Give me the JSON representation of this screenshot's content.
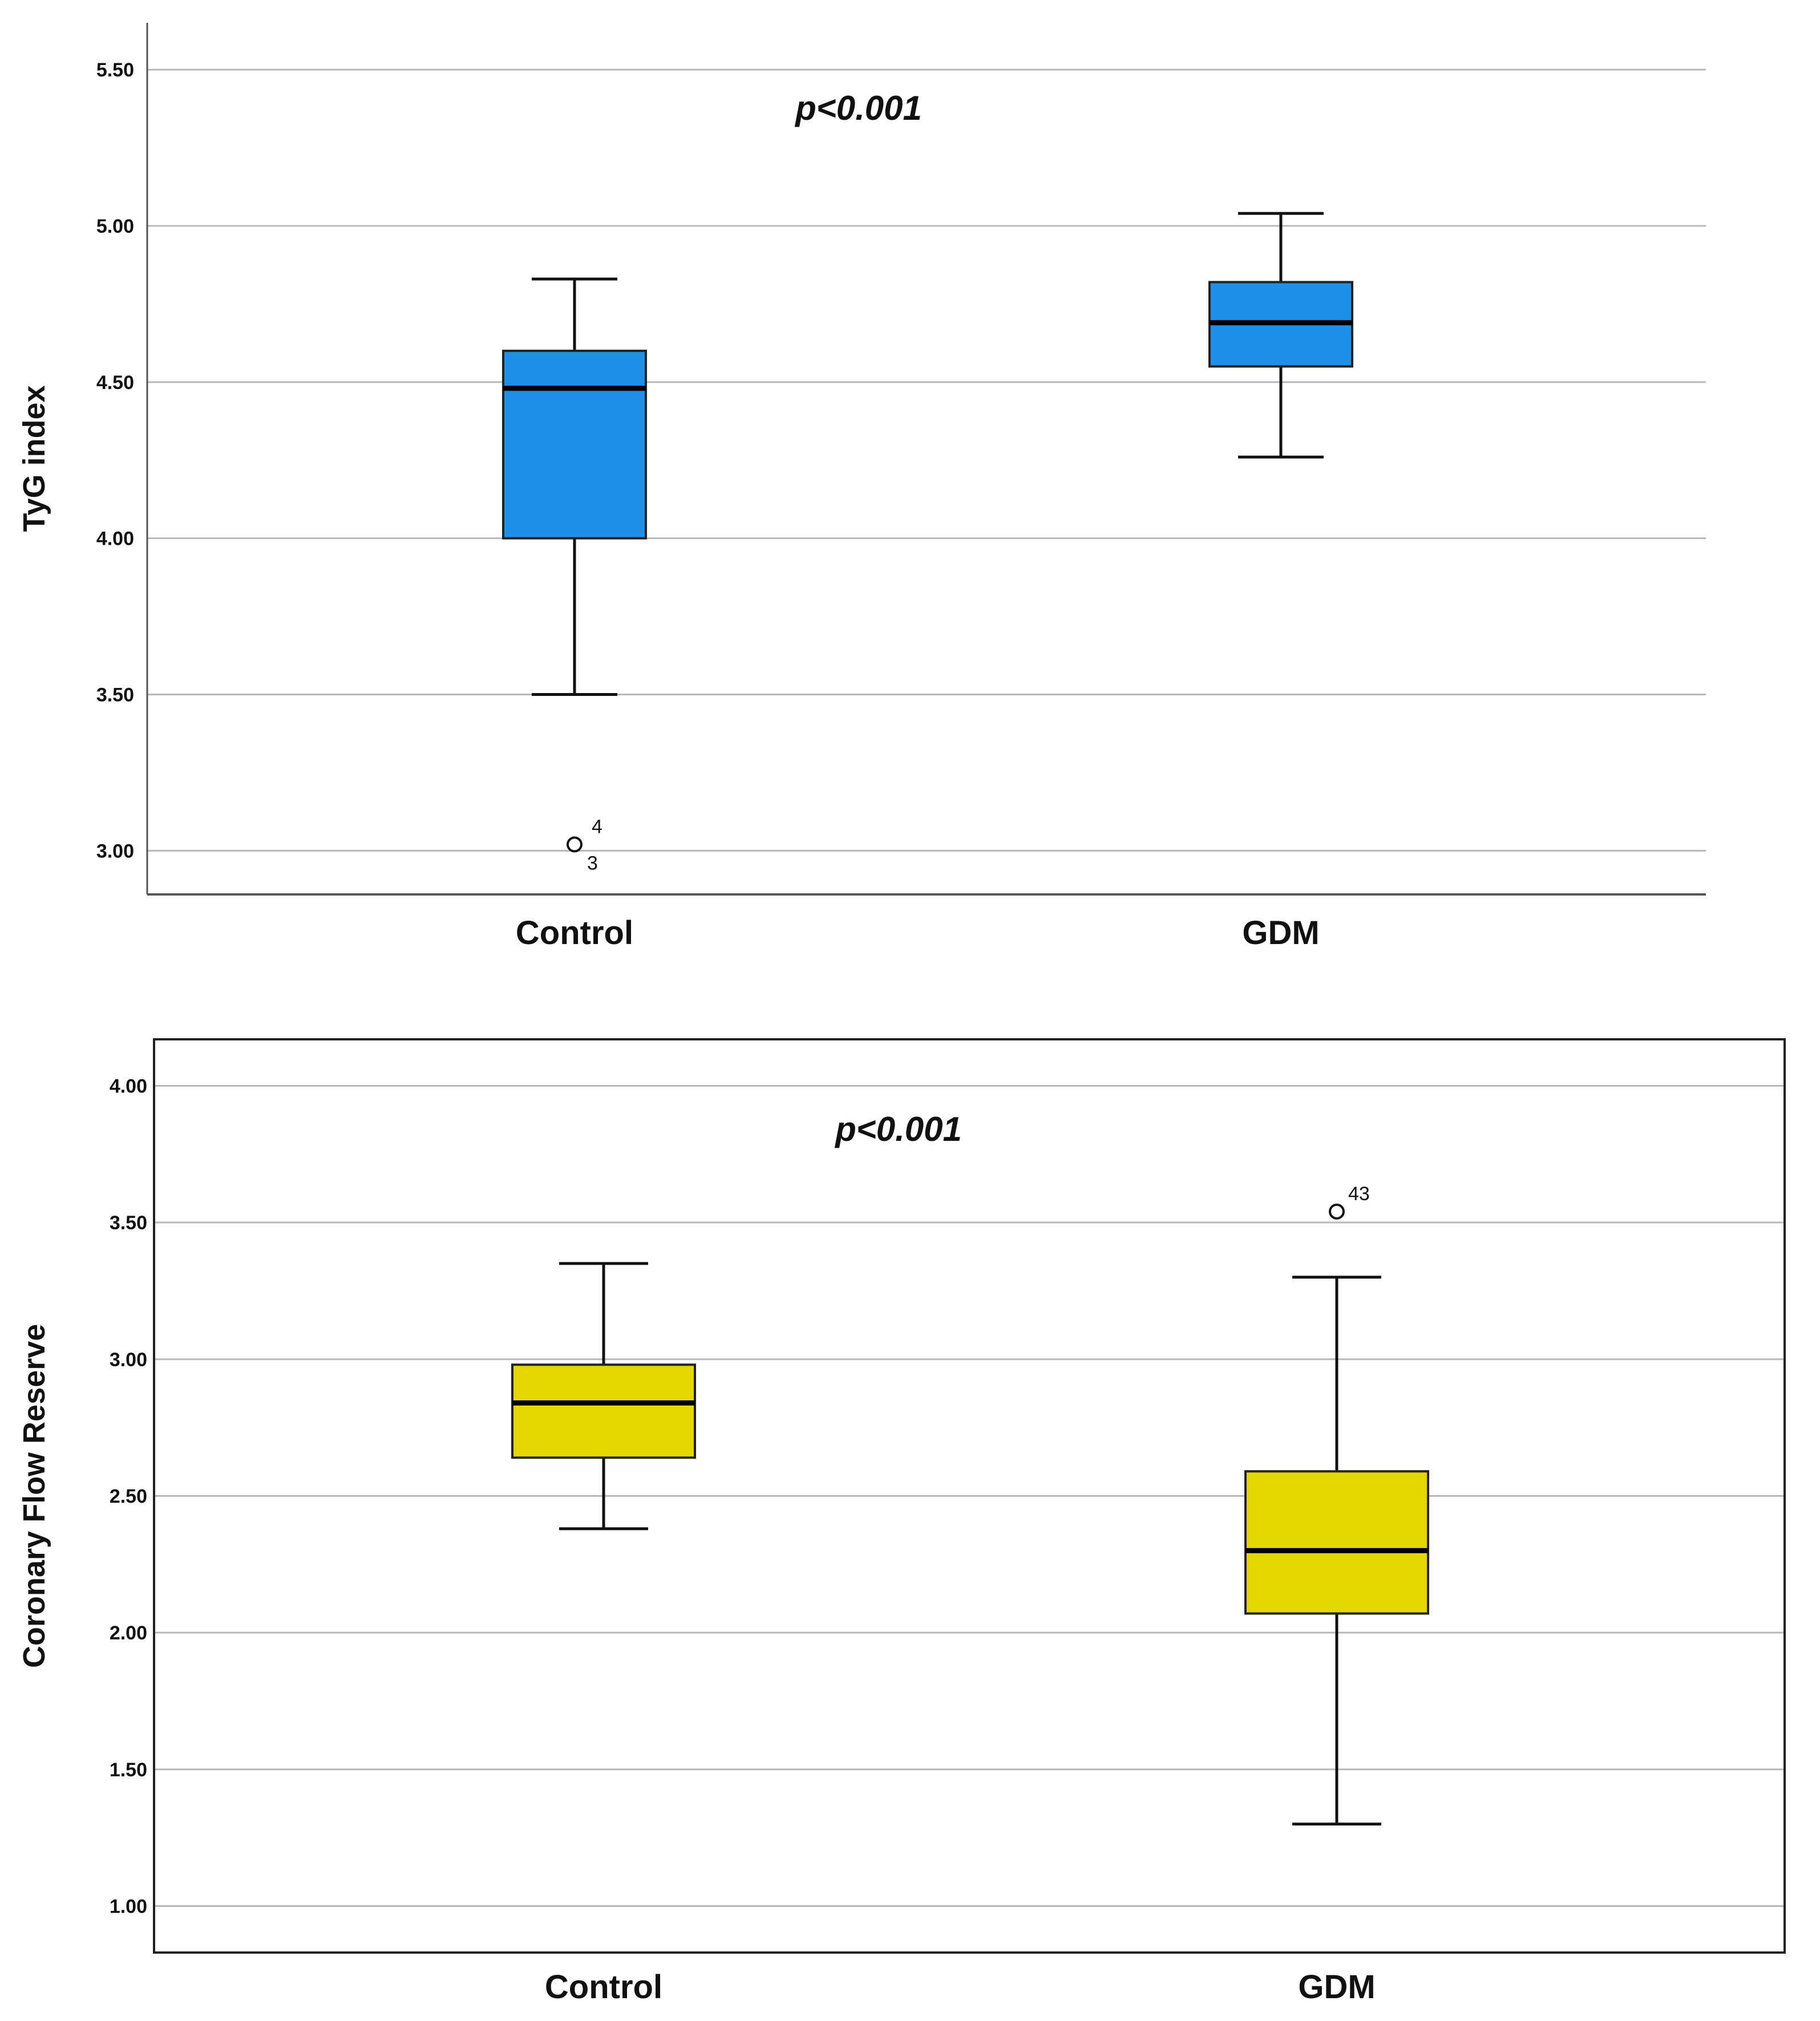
{
  "chart_data": [
    {
      "type": "box",
      "title": "",
      "xlabel": "",
      "ylabel": "TyG index",
      "ylim": [
        2.86,
        5.65
      ],
      "yticks": [
        "3.00",
        "3.50",
        "4.00",
        "4.50",
        "5.00",
        "5.50"
      ],
      "grid": true,
      "box_color": "#1E90E8",
      "annotation": "p<0.001",
      "categories": [
        "Control",
        "GDM"
      ],
      "boxes": [
        {
          "name": "Control",
          "whisker_low": 3.5,
          "q1": 4.0,
          "median": 4.48,
          "q3": 4.6,
          "whisker_high": 4.83,
          "outliers": [
            {
              "value": 3.02,
              "labels": [
                "4",
                "3"
              ]
            }
          ]
        },
        {
          "name": "GDM",
          "whisker_low": 4.26,
          "q1": 4.55,
          "median": 4.69,
          "q3": 4.82,
          "whisker_high": 5.04,
          "outliers": []
        }
      ]
    },
    {
      "type": "box",
      "title": "",
      "xlabel": "",
      "ylabel": "Coronary Flow Reserve",
      "ylim": [
        0.83,
        4.17
      ],
      "yticks": [
        "1.00",
        "1.50",
        "2.00",
        "2.50",
        "3.00",
        "3.50",
        "4.00"
      ],
      "grid": true,
      "box_color": "#E6D600",
      "annotation": "p<0.001",
      "categories": [
        "Control",
        "GDM"
      ],
      "boxes": [
        {
          "name": "Control",
          "whisker_low": 2.38,
          "q1": 2.64,
          "median": 2.84,
          "q3": 2.98,
          "whisker_high": 3.35,
          "outliers": []
        },
        {
          "name": "GDM",
          "whisker_low": 1.3,
          "q1": 2.07,
          "median": 2.3,
          "q3": 2.59,
          "whisker_high": 3.3,
          "outliers": [
            {
              "value": 3.54,
              "labels": [
                "43"
              ]
            }
          ]
        }
      ]
    }
  ]
}
